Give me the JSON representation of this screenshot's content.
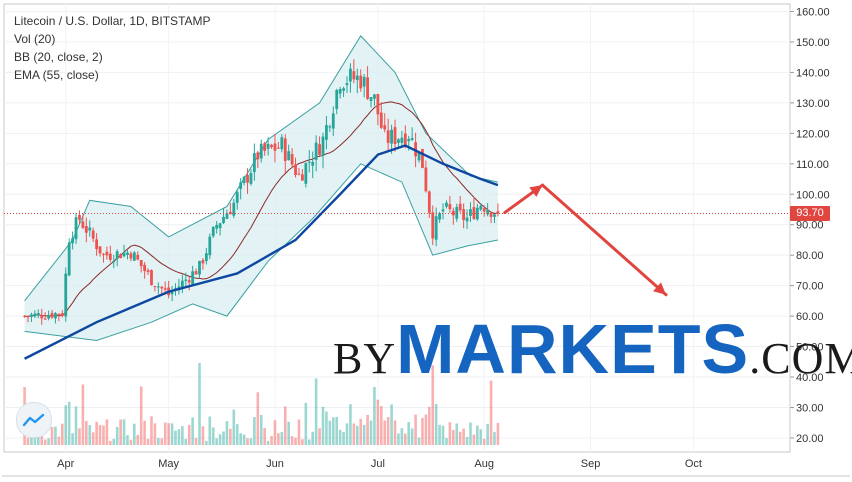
{
  "legend": {
    "title": "Litecoin / U.S. Dollar, 1D, BITSTAMP",
    "vol": "Vol (20)",
    "bb": "BB (20, close, 2)",
    "ema": "EMA (55, close)"
  },
  "watermark": {
    "prefix": "BY",
    "brand": "MARKETS",
    "suffix": ".COM"
  },
  "last_price_label": "93.70",
  "colors": {
    "up": "#26a69a",
    "down": "#ef5350",
    "ema": "#0d47a1",
    "bb_basis": "#8b2a2a",
    "bb_band": "#3aa0a0",
    "bb_fill": "#d9eef0",
    "arrow": "#e0463f",
    "price_line": "#e0463f"
  },
  "chart_data": {
    "type": "candlestick",
    "title": "Litecoin / U.S. Dollar, 1D, BITSTAMP",
    "y_axis": {
      "ticks": [
        "160.00",
        "150.00",
        "140.00",
        "130.00",
        "120.00",
        "110.00",
        "100.00",
        "90.00",
        "80.00",
        "70.00",
        "60.00",
        "50.00",
        "40.00",
        "30.00",
        "20.00"
      ],
      "range": [
        17,
        162
      ]
    },
    "x_axis": {
      "labels": [
        "Apr",
        "May",
        "Jun",
        "Jul",
        "Aug",
        "Sep",
        "Oct"
      ]
    },
    "last_price": 93.7,
    "close_path": [
      {
        "date": "2019-03-20",
        "value": 60
      },
      {
        "date": "2019-03-31",
        "value": 61
      },
      {
        "date": "2019-04-02",
        "value": 86
      },
      {
        "date": "2019-04-05",
        "value": 92
      },
      {
        "date": "2019-04-12",
        "value": 80
      },
      {
        "date": "2019-04-20",
        "value": 81
      },
      {
        "date": "2019-04-26",
        "value": 72
      },
      {
        "date": "2019-05-01",
        "value": 67
      },
      {
        "date": "2019-05-10",
        "value": 76
      },
      {
        "date": "2019-05-15",
        "value": 90
      },
      {
        "date": "2019-05-20",
        "value": 97
      },
      {
        "date": "2019-05-27",
        "value": 113
      },
      {
        "date": "2019-06-03",
        "value": 116
      },
      {
        "date": "2019-06-08",
        "value": 106
      },
      {
        "date": "2019-06-15",
        "value": 118
      },
      {
        "date": "2019-06-20",
        "value": 138
      },
      {
        "date": "2019-06-26",
        "value": 138
      },
      {
        "date": "2019-06-30",
        "value": 131
      },
      {
        "date": "2019-07-03",
        "value": 118
      },
      {
        "date": "2019-07-10",
        "value": 120
      },
      {
        "date": "2019-07-14",
        "value": 110
      },
      {
        "date": "2019-07-17",
        "value": 88
      },
      {
        "date": "2019-07-20",
        "value": 95
      },
      {
        "date": "2019-07-27",
        "value": 92
      },
      {
        "date": "2019-07-31",
        "value": 97
      },
      {
        "date": "2019-08-05",
        "value": 93.7
      }
    ],
    "ema_55": [
      {
        "date": "2019-03-20",
        "value": 46
      },
      {
        "date": "2019-04-10",
        "value": 58
      },
      {
        "date": "2019-05-01",
        "value": 68
      },
      {
        "date": "2019-05-21",
        "value": 74
      },
      {
        "date": "2019-06-07",
        "value": 85
      },
      {
        "date": "2019-06-20",
        "value": 100
      },
      {
        "date": "2019-07-01",
        "value": 113
      },
      {
        "date": "2019-07-09",
        "value": 116
      },
      {
        "date": "2019-07-20",
        "value": 110
      },
      {
        "date": "2019-07-31",
        "value": 105
      },
      {
        "date": "2019-08-05",
        "value": 103
      }
    ],
    "bb_upper": [
      {
        "date": "2019-03-20",
        "value": 65
      },
      {
        "date": "2019-04-03",
        "value": 85
      },
      {
        "date": "2019-04-08",
        "value": 98
      },
      {
        "date": "2019-04-20",
        "value": 96
      },
      {
        "date": "2019-05-01",
        "value": 86
      },
      {
        "date": "2019-05-18",
        "value": 96
      },
      {
        "date": "2019-05-30",
        "value": 118
      },
      {
        "date": "2019-06-14",
        "value": 130
      },
      {
        "date": "2019-06-26",
        "value": 152
      },
      {
        "date": "2019-07-06",
        "value": 140
      },
      {
        "date": "2019-07-15",
        "value": 120
      },
      {
        "date": "2019-07-28",
        "value": 106
      },
      {
        "date": "2019-08-05",
        "value": 104
      }
    ],
    "bb_lower": [
      {
        "date": "2019-03-20",
        "value": 55
      },
      {
        "date": "2019-04-10",
        "value": 52
      },
      {
        "date": "2019-04-26",
        "value": 58
      },
      {
        "date": "2019-05-08",
        "value": 64
      },
      {
        "date": "2019-05-18",
        "value": 60
      },
      {
        "date": "2019-05-30",
        "value": 78
      },
      {
        "date": "2019-06-12",
        "value": 92
      },
      {
        "date": "2019-06-26",
        "value": 110
      },
      {
        "date": "2019-07-08",
        "value": 104
      },
      {
        "date": "2019-07-17",
        "value": 80
      },
      {
        "date": "2019-07-27",
        "value": 83
      },
      {
        "date": "2019-08-05",
        "value": 85
      }
    ],
    "forecast_arrows": [
      {
        "from": {
          "date": "2019-08-07",
          "value": 94
        },
        "to": {
          "date": "2019-08-18",
          "value": 103
        }
      },
      {
        "from": {
          "date": "2019-08-18",
          "value": 103
        },
        "to": {
          "date": "2019-09-23",
          "value": 67
        }
      }
    ]
  }
}
